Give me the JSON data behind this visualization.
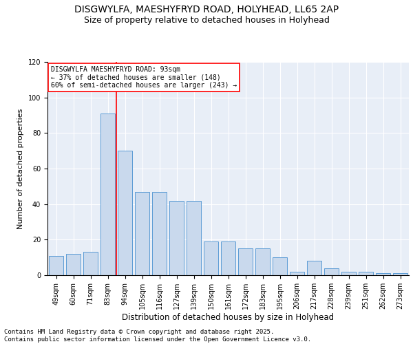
{
  "title_line1": "DISGWYLFA, MAESHYFRYD ROAD, HOLYHEAD, LL65 2AP",
  "title_line2": "Size of property relative to detached houses in Holyhead",
  "xlabel": "Distribution of detached houses by size in Holyhead",
  "ylabel": "Number of detached properties",
  "categories": [
    "49sqm",
    "60sqm",
    "71sqm",
    "83sqm",
    "94sqm",
    "105sqm",
    "116sqm",
    "127sqm",
    "139sqm",
    "150sqm",
    "161sqm",
    "172sqm",
    "183sqm",
    "195sqm",
    "206sqm",
    "217sqm",
    "228sqm",
    "239sqm",
    "251sqm",
    "262sqm",
    "273sqm"
  ],
  "values": [
    11,
    12,
    13,
    91,
    70,
    47,
    47,
    42,
    42,
    19,
    19,
    15,
    15,
    10,
    2,
    8,
    4,
    2,
    2,
    1,
    1
  ],
  "bar_color": "#c9d9ed",
  "bar_edge_color": "#5b9bd5",
  "vline_color": "red",
  "annotation_line1": "DISGWYLFA MAESHYFRYD ROAD: 93sqm",
  "annotation_line2": "← 37% of detached houses are smaller (148)",
  "annotation_line3": "60% of semi-detached houses are larger (243) →",
  "annotation_box_color": "white",
  "annotation_box_edge_color": "red",
  "vline_pos": 3.5,
  "ylim": [
    0,
    120
  ],
  "yticks": [
    0,
    20,
    40,
    60,
    80,
    100,
    120
  ],
  "background_color": "#e8eef7",
  "footer_line1": "Contains HM Land Registry data © Crown copyright and database right 2025.",
  "footer_line2": "Contains public sector information licensed under the Open Government Licence v3.0.",
  "title_fontsize": 10,
  "subtitle_fontsize": 9,
  "tick_fontsize": 7,
  "xlabel_fontsize": 8.5,
  "ylabel_fontsize": 8,
  "footer_fontsize": 6.5
}
